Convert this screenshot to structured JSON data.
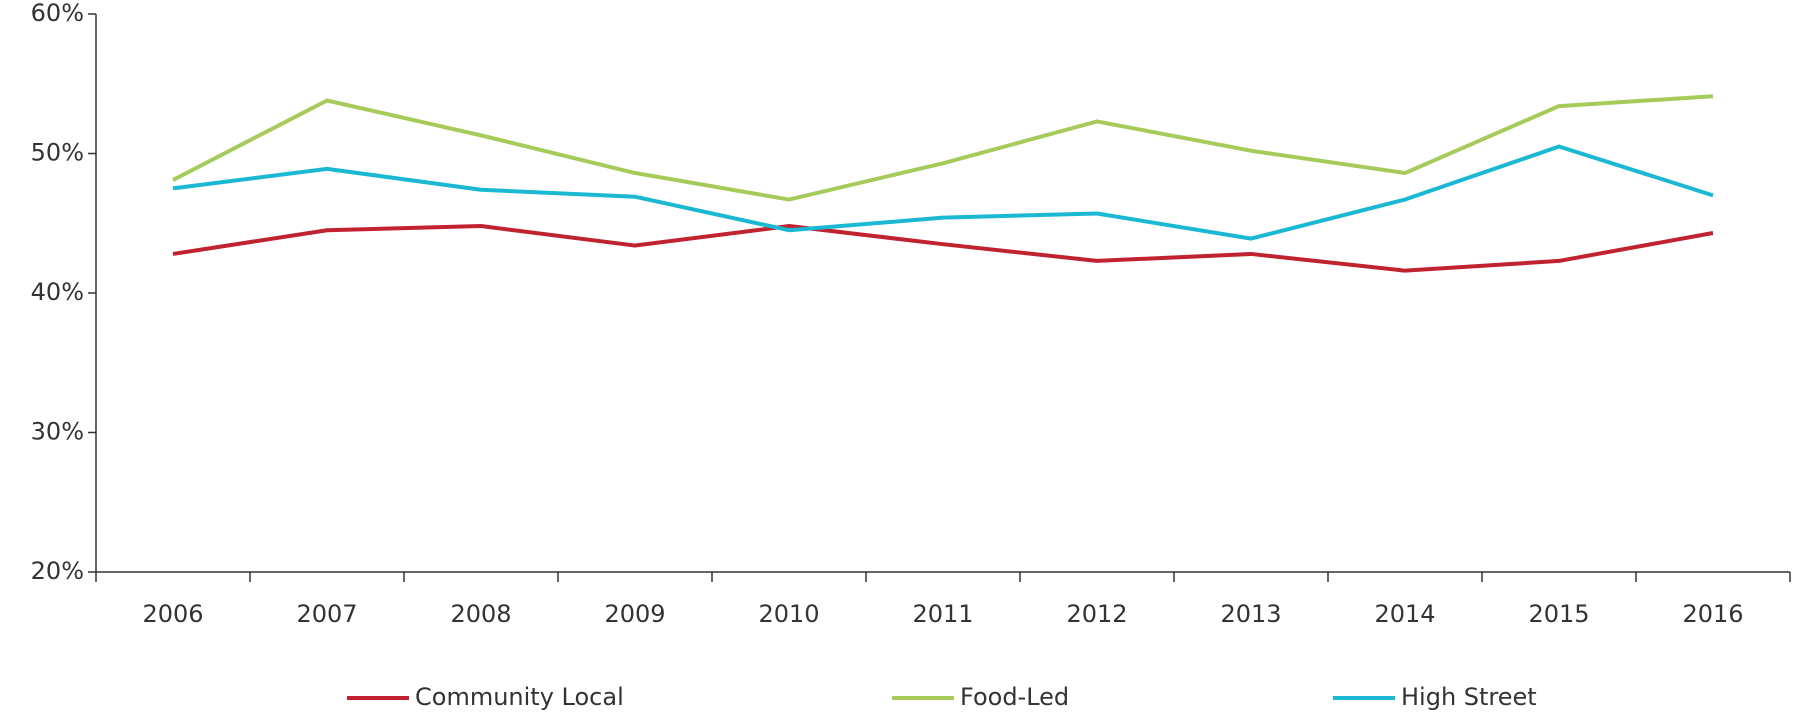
{
  "chart_data": {
    "type": "line",
    "categories": [
      "2006",
      "2007",
      "2008",
      "2009",
      "2010",
      "2011",
      "2012",
      "2013",
      "2014",
      "2015",
      "2016"
    ],
    "series": [
      {
        "name": "Community Local",
        "color": "#c0222f",
        "values": [
          42.8,
          44.5,
          44.8,
          43.4,
          44.8,
          43.5,
          42.3,
          42.8,
          41.6,
          42.3,
          44.3
        ]
      },
      {
        "name": "Food-Led",
        "color": "#a6cb5a",
        "values": [
          48.1,
          53.8,
          51.3,
          48.6,
          46.7,
          49.3,
          52.3,
          50.2,
          48.6,
          53.4,
          54.1
        ]
      },
      {
        "name": "High Street",
        "color": "#1ab8d2",
        "values": [
          47.5,
          48.9,
          47.4,
          46.9,
          44.5,
          45.4,
          45.7,
          43.9,
          46.7,
          50.5,
          47.0
        ]
      }
    ],
    "ylim": [
      20,
      60
    ],
    "yticks": [
      {
        "value": 20,
        "label": "20%"
      },
      {
        "value": 30,
        "label": "30%"
      },
      {
        "value": 40,
        "label": "40%"
      },
      {
        "value": 50,
        "label": "50%"
      },
      {
        "value": 60,
        "label": "60%"
      }
    ],
    "legend": "bottom"
  }
}
